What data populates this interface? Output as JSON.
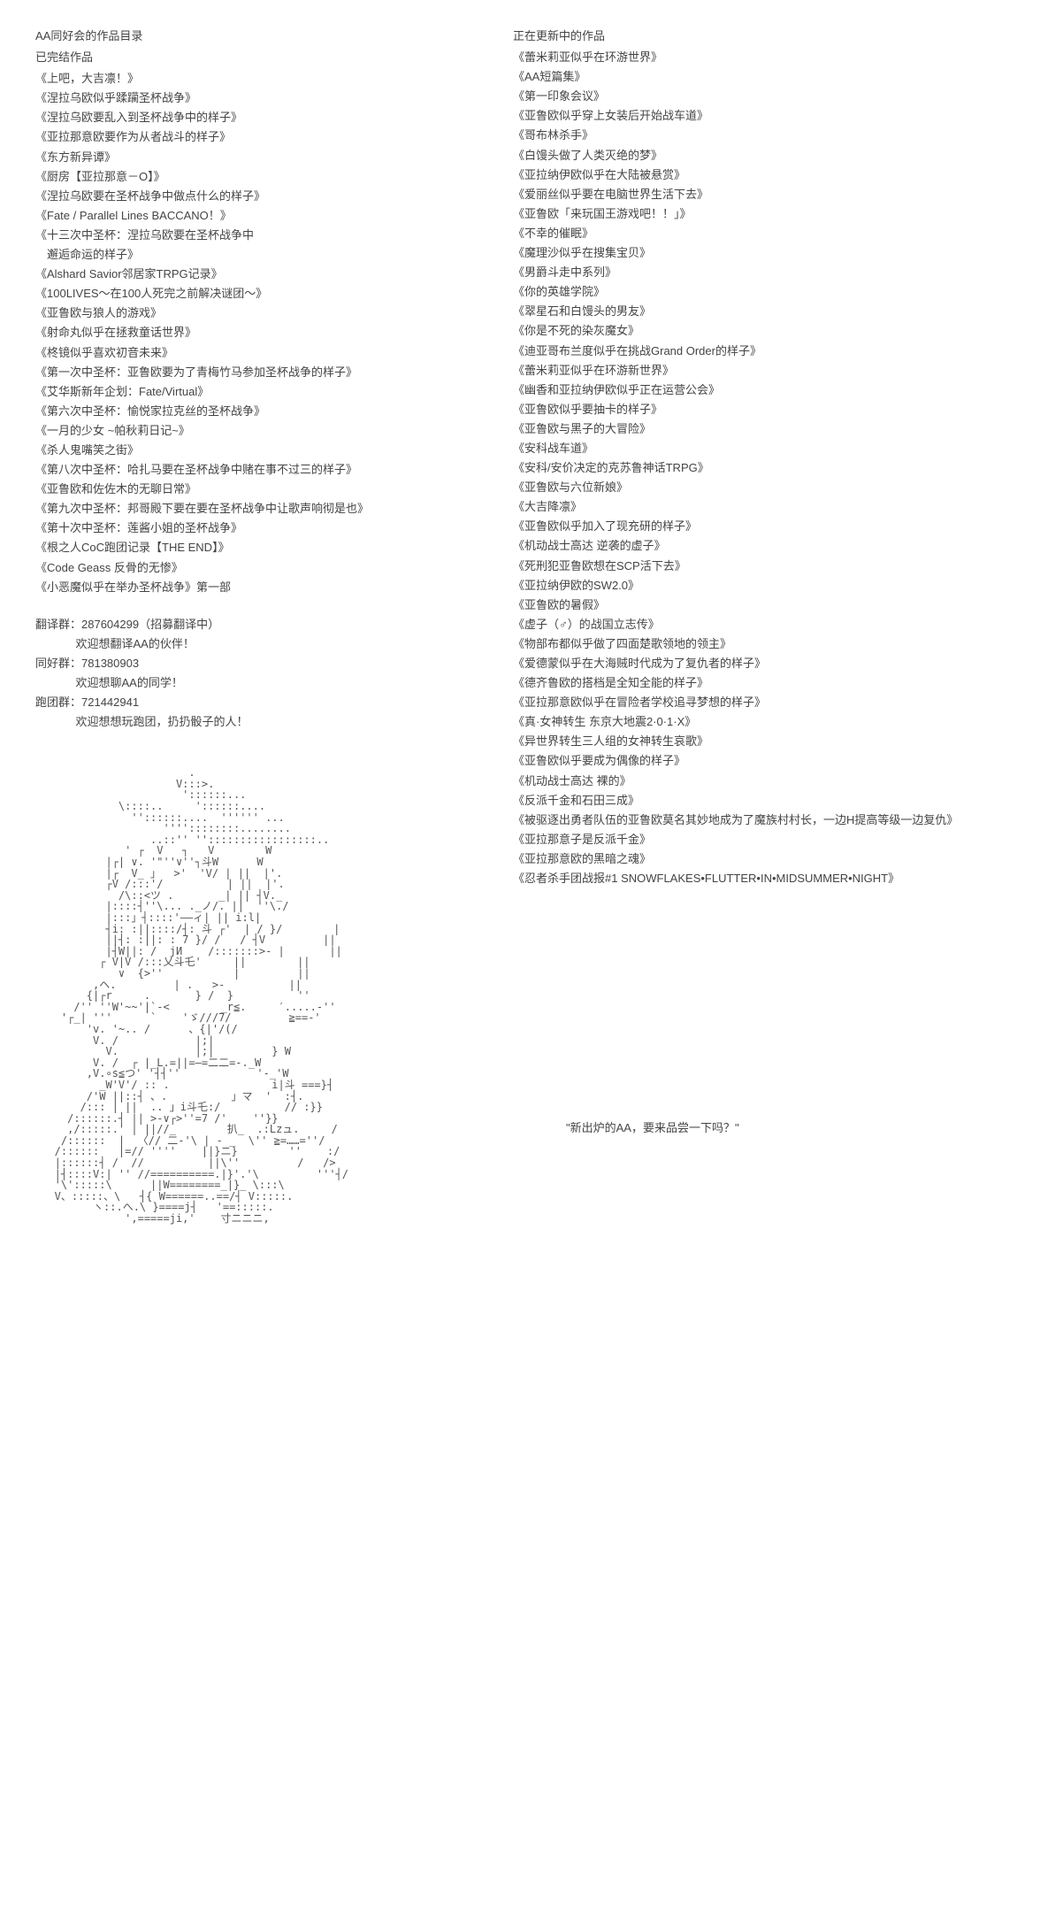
{
  "left": {
    "heading": "AA同好会的作品目录",
    "subheading": "已完结作品",
    "works": [
      "《上吧，大吉凛！》",
      "《涅拉乌欧似乎蹂躏圣杯战争》",
      "《涅拉乌欧要乱入到圣杯战争中的样子》",
      "《亚拉那意欧要作为从者战斗的样子》",
      "《东方新异谭》",
      "《厨房【亚拉那意－O】》",
      "《涅拉乌欧要在圣杯战争中做点什么的样子》",
      "《Fate / Parallel Lines BACCANO！》",
      "《十三次中圣杯：涅拉乌欧要在圣杯战争中\n　邂逅命运的样子》",
      "《Alshard Savior邻居家TRPG记录》",
      "《100LIVES～在100人死完之前解决谜团～》",
      "《亚鲁欧与狼人的游戏》",
      "《射命丸似乎在拯救童话世界》",
      "《柊镜似乎喜欢初音未来》",
      "《第一次中圣杯：亚鲁欧要为了青梅竹马参加圣杯战争的样子》",
      "《艾华斯新年企划：Fate/Virtual》",
      "《第六次中圣杯：愉悦家拉克丝的圣杯战争》",
      "《一月的少女 ~帕秋莉日记~》",
      "《杀人鬼嘴笑之街》",
      "《第八次中圣杯：哈扎马要在圣杯战争中赌在事不过三的样子》",
      "《亚鲁欧和佐佐木的无聊日常》",
      "《第九次中圣杯：邦哥殿下要在要在圣杯战争中让歌声响彻是也》",
      "《第十次中圣杯：莲酱小姐的圣杯战争》",
      "《根之人CoC跑团记录【THE END】》",
      "《Code Geass 反骨的无惨》",
      "《小恶魔似乎在举办圣杯战争》第一部"
    ],
    "groups": [
      {
        "label": "翻译群：287604299（招募翻译中）",
        "sub": "欢迎想翻译AA的伙伴！"
      },
      {
        "label": "同好群：781380903",
        "sub": "欢迎想聊AA的同学！"
      },
      {
        "label": "跑团群：721442941",
        "sub": "欢迎想想玩跑团，扔扔骰子的人！"
      }
    ]
  },
  "right": {
    "heading": "正在更新中的作品",
    "works": [
      "《蕾米莉亚似乎在环游世界》",
      "《AA短篇集》",
      "《第一印象会议》",
      "《亚鲁欧似乎穿上女装后开始战车道》",
      "《哥布林杀手》",
      "《白馒头做了人类灭绝的梦》",
      "《亚拉纳伊欧似乎在大陆被悬赏》",
      "《爱丽丝似乎要在电脑世界生活下去》",
      "《亚鲁欧「来玩国王游戏吧！！」》",
      "《不幸的催眠》",
      "《魔理沙似乎在搜集宝贝》",
      "《男爵斗走中系列》",
      "《你的英雄学院》",
      "《翠星石和白馒头的男友》",
      "《你是不死的染灰魔女》",
      "《迪亚哥布兰度似乎在挑战Grand Order的样子》",
      "《蕾米莉亚似乎在环游新世界》",
      "《幽香和亚拉纳伊欧似乎正在运营公会》",
      "《亚鲁欧似乎要抽卡的样子》",
      "《亚鲁欧与黑子的大冒险》",
      "《安科战车道》",
      "《安科/安价决定的克苏鲁神话TRPG》",
      "《亚鲁欧与六位新娘》",
      "《大吉降凛》",
      "《亚鲁欧似乎加入了现充研的样子》",
      "《机动战士高达 逆袭的虚子》",
      "《死刑犯亚鲁欧想在SCP活下去》",
      "《亚拉纳伊欧的SW2.0》",
      "《亚鲁欧的暑假》",
      "《虚子（♂）的战国立志传》",
      "《物部布都似乎做了四面楚歌领地的领主》",
      "《爱德蒙似乎在大海贼时代成为了复仇者的样子》",
      "《德齐鲁欧的搭档是全知全能的样子》",
      "《亚拉那意欧似乎在冒险者学校追寻梦想的样子》",
      "《真·女神转生 东京大地震2·0·1·X》",
      "《异世界转生三人组的女神转生哀歌》",
      "《亚鲁欧似乎要成为偶像的样子》",
      "《机动战士高达 裸的》",
      "《反派千金和石田三成》",
      "《被驱逐出勇者队伍的亚鲁欧莫名其妙地成为了魔族村村长，一边H提高等级一边复仇》",
      "《亚拉那意子是反派千金》",
      "《亚拉那意欧的黑暗之魂》",
      "《忍者杀手团战报#1 SNOWFLAKES•FLUTTER•IN•MIDSUMMER•NIGHT》"
    ],
    "quote": "\"新出炉的AA，要来品尝一下吗？\""
  },
  "ascii_art": "                        .\n                      V:::>.\n                       '::::::...\n             \\::::..     '::::::....\n               ''::::::....  '''''' ...\n                    ''''::::::::........\n                  ..::'' '':::::::::::::::::..\n              ' ┌  V   ┐   V        W\n           |┌| ∨. '\"''∨''┐斗W      W\n           |┌  V_ 」  >'  'V/ | ||  |'.\n           ┌V /:::'/          | ||  |'.\n             /\\::<ツ .       _| || ┤V._\n           |::::┤''\\... ._ノ/. ||  ''\\./\n           |:::」┤::::'——ィ| || i:l|\n           ┤i: :||::::/┤: 斗 ┌'  | / }/        |\n           ||┤: :||: : 7 }/ /   / ┤V         ||\n           |┤W||: /  jИ    /:::::::>- |       ||\n          ┌ V|V /:::乂斗乇'     ||        ||\n             ∨  {>''           |         ||\n         ,ヘ.         | .   >-          ||\n        {|┌r     .       } /  }          ''\n      /'' ''W'~~'|`-<        _r≦.     ′.....-''\n    '┌_| '''      `    'ゞ///7/         ≧==-'\n        'v. '~.. /      、{|'/(/\n         V. /            |;|\n           V.            |;|         } W\n         V. /  ┌ |_L.=||=—=二二=-._W\n        ,V.∘s≦つ' '┤┤''            '‐_'W\n          _W'V'/ :: .                i|斗 ===}┤\n        /'W ||::┤ 、.          」マ  '  :┤.\n       /::: | ||  .. 」i斗乇:/          // :}}\n     /::::::.┤ || >-∨┌>''=7 /'    ''}}\n     ,/:::::.' | ||//_        扒_  .:Lzュ.     /\n    /::::::  |  〈// 二-'\\ | - _  \\'' ≧=……=''/\n   /::::::   |=// ''''    ||}ニ}        ''    :/\n   |::::::┤ /  //          ||\\''         /   />\n   |┤::::V:| '' //==========.|}'.'\\         '''┤/\n   '\\':::::\\      ||W========_|}_ \\:::\\\n   V、:::::、\\   ┤{ W======..==/┤ V:::::.\n         ヽ::.へ.\\ }====j┤   '==:::::.\n              ',=====ji,'    寸ニニニ,"
}
